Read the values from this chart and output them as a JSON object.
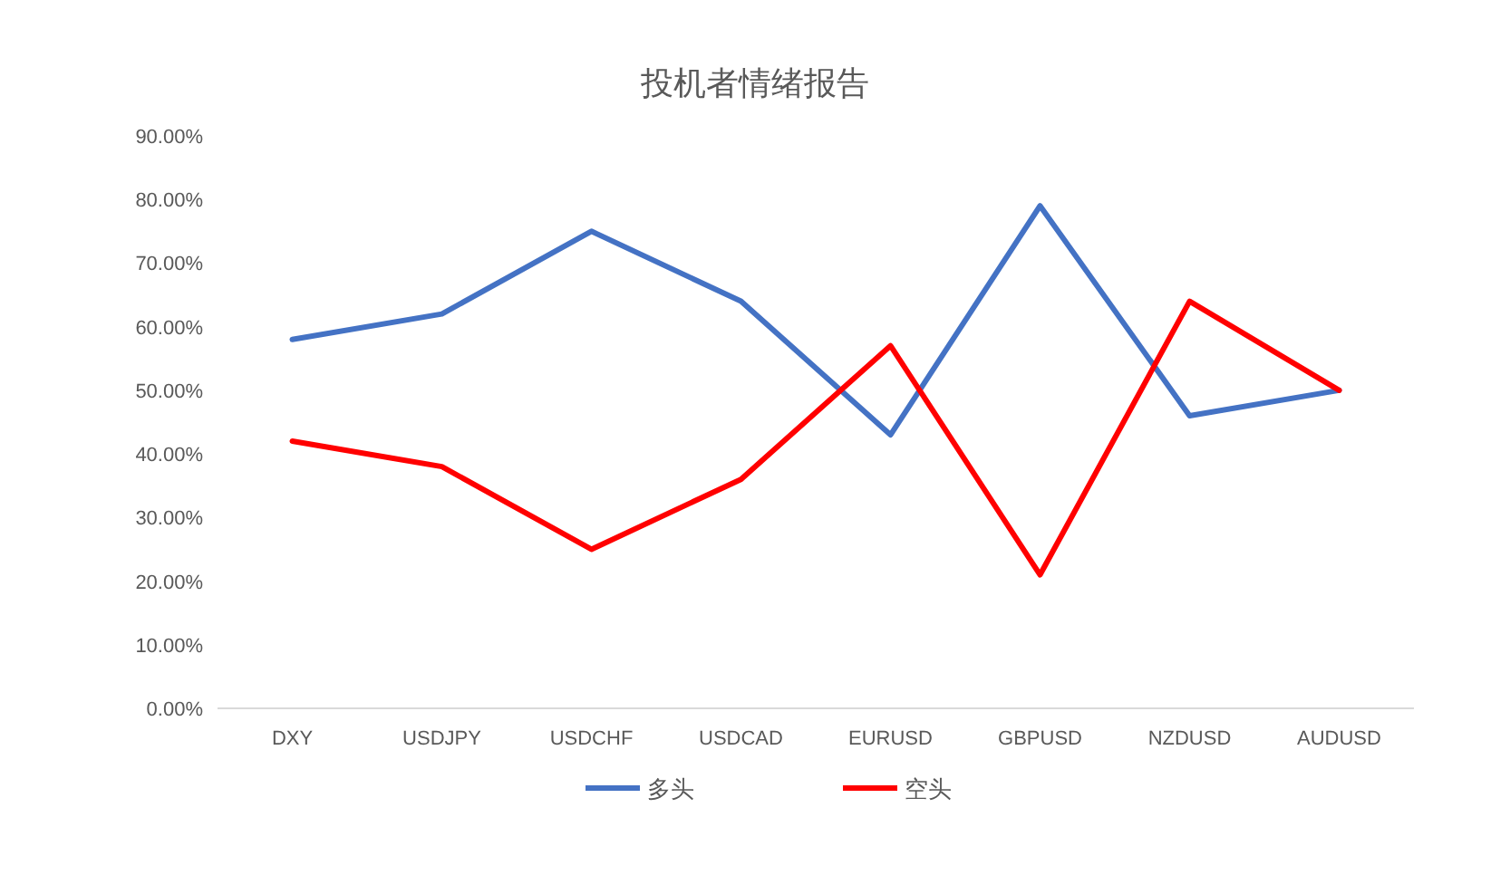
{
  "chart_data": {
    "type": "line",
    "title": "投机者情绪报告",
    "categories": [
      "DXY",
      "USDJPY",
      "USDCHF",
      "USDCAD",
      "EURUSD",
      "GBPUSD",
      "NZDUSD",
      "AUDUSD"
    ],
    "series": [
      {
        "name": "多头",
        "color": "#4472c4",
        "values": [
          58,
          62,
          75,
          64,
          43,
          79,
          46,
          50
        ]
      },
      {
        "name": "空头",
        "color": "#ff0000",
        "values": [
          42,
          38,
          25,
          36,
          57,
          21,
          64,
          50
        ]
      }
    ],
    "ylim": [
      0,
      90
    ],
    "yticks": [
      {
        "value": 0,
        "label": "0.00%"
      },
      {
        "value": 10,
        "label": "10.00%"
      },
      {
        "value": 20,
        "label": "20.00%"
      },
      {
        "value": 30,
        "label": "30.00%"
      },
      {
        "value": 40,
        "label": "40.00%"
      },
      {
        "value": 50,
        "label": "50.00%"
      },
      {
        "value": 60,
        "label": "60.00%"
      },
      {
        "value": 70,
        "label": "70.00%"
      },
      {
        "value": 80,
        "label": "80.00%"
      },
      {
        "value": 90,
        "label": "90.00%"
      }
    ],
    "legend": "bottom",
    "marker": "none",
    "line_style": "solid",
    "grid": false
  }
}
